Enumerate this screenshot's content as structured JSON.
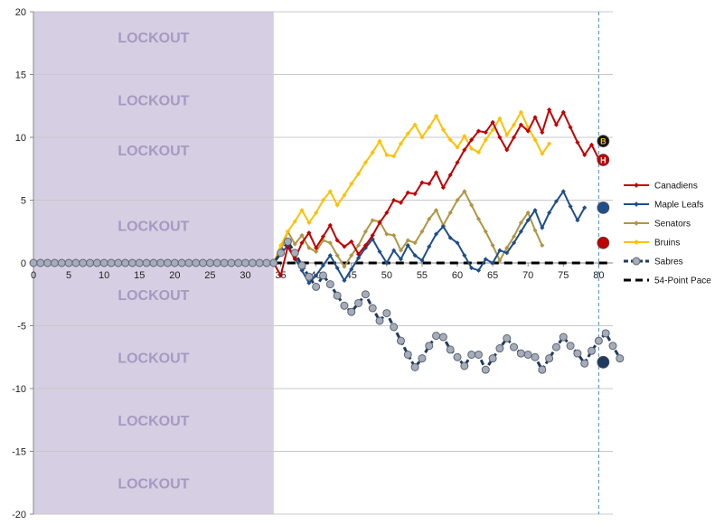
{
  "chart_data": {
    "type": "line",
    "x_range": [
      0,
      82
    ],
    "ylim": [
      -20,
      20
    ],
    "x_ticks": [
      0,
      5,
      10,
      15,
      20,
      25,
      30,
      35,
      40,
      45,
      50,
      55,
      60,
      65,
      70,
      75,
      80
    ],
    "y_ticks": [
      -20,
      -15,
      -10,
      -5,
      0,
      5,
      10,
      15,
      20
    ],
    "grid": "horizontal",
    "lockout": {
      "label": "LOCKOUT",
      "x_start": 0,
      "x_end": 34,
      "label_y": [
        18,
        13,
        9,
        3,
        -2.5,
        -7.5,
        -12.5,
        -17.5
      ]
    },
    "marker_line_x": 80,
    "legend_position": "right",
    "series": [
      {
        "name": "Canadiens",
        "color": "#c00000",
        "marker": "diamond",
        "x_start": 34,
        "values": [
          0,
          -1,
          1.3,
          0.3,
          1.6,
          2.4,
          1.2,
          2.1,
          3.0,
          1.8,
          1.3,
          1.7,
          0.7,
          1.4,
          2.2,
          3.2,
          4.0,
          5.0,
          4.8,
          5.6,
          5.5,
          6.4,
          6.3,
          7.2,
          6.0,
          7.0,
          8.0,
          9.0,
          9.8,
          10.5,
          10.4,
          11.2,
          10.0,
          9.0,
          10.0,
          11.0,
          10.5,
          11.6,
          10.4,
          12.2,
          11.0,
          12.0,
          10.8,
          9.6,
          8.6,
          9.4,
          8.3
        ]
      },
      {
        "name": "Maple Leafs",
        "color": "#1f4e8c",
        "marker": "diamond",
        "x_start": 34,
        "values": [
          0,
          0.7,
          1.4,
          0.4,
          -0.6,
          -1.6,
          -1.0,
          -0.2,
          0.6,
          -0.4,
          -1.4,
          -0.5,
          0.4,
          1.2,
          1.9,
          0.9,
          0.0,
          1.0,
          0.3,
          1.4,
          0.6,
          0.2,
          1.3,
          2.3,
          2.9,
          2.0,
          1.6,
          0.6,
          -0.4,
          -0.6,
          0.3,
          0.0,
          1.0,
          0.8,
          1.6,
          2.5,
          3.4,
          4.2,
          2.8,
          4.0,
          4.9,
          5.7,
          4.5,
          3.4,
          4.4
        ]
      },
      {
        "name": "Senators",
        "color": "#b09645",
        "marker": "diamond",
        "x_start": 34,
        "values": [
          0,
          1.0,
          2.5,
          1.5,
          2.2,
          1.2,
          0.9,
          1.8,
          1.6,
          0.6,
          -0.3,
          0.6,
          1.4,
          2.5,
          3.4,
          3.3,
          2.3,
          2.2,
          1.0,
          1.8,
          1.6,
          2.5,
          3.5,
          4.2,
          3.0,
          4.0,
          5.0,
          5.7,
          4.6,
          3.5,
          2.5,
          1.4,
          0.2,
          1.2,
          2.1,
          3.2,
          4.0,
          2.6,
          1.4
        ]
      },
      {
        "name": "Bruins",
        "color": "#ffc000",
        "marker": "diamond",
        "x_start": 34,
        "values": [
          0,
          1.4,
          2.5,
          3.3,
          4.2,
          3.2,
          4.0,
          5.0,
          5.7,
          4.6,
          5.4,
          6.3,
          7.1,
          8.0,
          8.8,
          9.7,
          8.6,
          8.5,
          9.5,
          10.3,
          11.0,
          10.0,
          10.8,
          11.7,
          10.6,
          9.8,
          9.2,
          10.1,
          9.1,
          8.8,
          9.8,
          10.6,
          11.5,
          10.2,
          11.0,
          12.0,
          10.8,
          9.8,
          8.7,
          9.5
        ]
      },
      {
        "name": "Sabres",
        "color": "#1f3a5f",
        "marker": "circle",
        "x_start": 0,
        "values": [
          0,
          0,
          0,
          0,
          0,
          0,
          0,
          0,
          0,
          0,
          0,
          0,
          0,
          0,
          0,
          0,
          0,
          0,
          0,
          0,
          0,
          0,
          0,
          0,
          0,
          0,
          0,
          0,
          0,
          0,
          0,
          0,
          0,
          0,
          0,
          0.8,
          1.7,
          0.8,
          -0.2,
          -1.1,
          -1.9,
          -1.0,
          -1.7,
          -2.6,
          -3.4,
          -3.9,
          -3.2,
          -2.5,
          -3.6,
          -4.6,
          -4.0,
          -5.1,
          -6.2,
          -7.3,
          -8.3,
          -7.6,
          -6.6,
          -5.8,
          -5.9,
          -6.9,
          -7.5,
          -8.2,
          -7.3,
          -7.3,
          -8.5,
          -7.6,
          -6.8,
          -6.0,
          -6.7,
          -7.2,
          -7.3,
          -7.5,
          -8.5,
          -7.6,
          -6.7,
          -5.9,
          -6.6,
          -7.2,
          -8.0,
          -7.0,
          -6.2,
          -5.6,
          -6.6,
          -7.6
        ]
      },
      {
        "name": "54-Point Pace",
        "color": "#000000",
        "style": "dashed",
        "x_start": 34,
        "values": [
          0,
          0
        ]
      }
    ],
    "end_logos": [
      {
        "team": "Bruins",
        "y": 9.7,
        "color": "#111111",
        "text": "B",
        "text_color": "#ffc000"
      },
      {
        "team": "Canadiens",
        "y": 8.2,
        "color": "#c00000",
        "text": "H",
        "text_color": "#ffffff"
      },
      {
        "team": "Maple Leafs",
        "y": 4.4,
        "color": "#1f4e8c",
        "text": "",
        "text_color": "#ffffff"
      },
      {
        "team": "Senators",
        "y": 1.6,
        "color": "#c00000",
        "text": "",
        "text_color": "#ffffff"
      },
      {
        "team": "Sabres",
        "y": -7.9,
        "color": "#1f3a5f",
        "text": "",
        "text_color": "#ffffff"
      }
    ]
  }
}
